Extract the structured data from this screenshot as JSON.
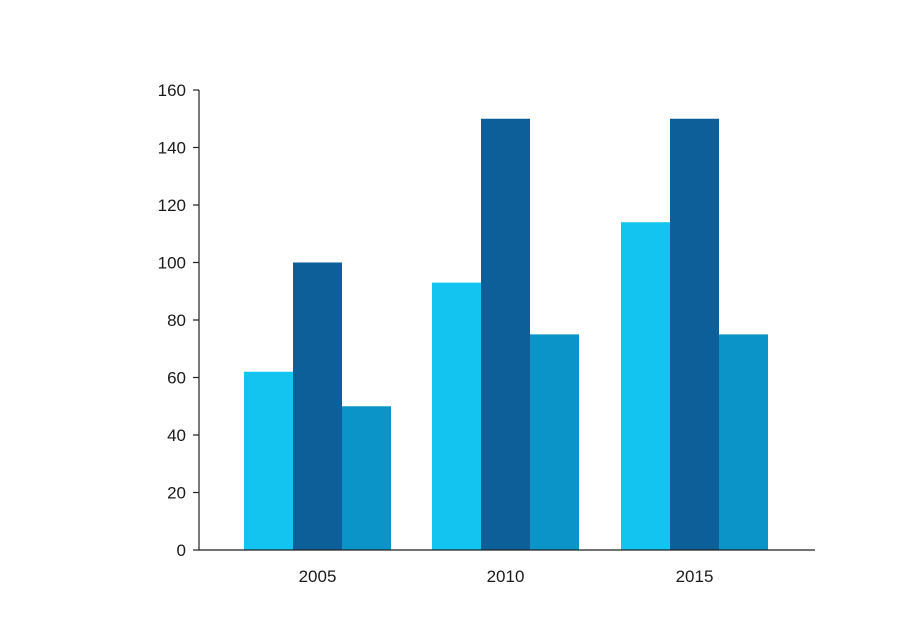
{
  "chart_data": {
    "type": "bar",
    "categories": [
      "2005",
      "2010",
      "2015"
    ],
    "series": [
      {
        "color": "#12c4ef",
        "values": [
          62,
          93,
          114
        ]
      },
      {
        "color": "#0d5f99",
        "values": [
          100,
          150,
          150
        ]
      },
      {
        "color": "#0b94c8",
        "values": [
          50,
          75,
          75
        ]
      }
    ],
    "yticks": [
      0,
      20,
      40,
      60,
      80,
      100,
      120,
      140,
      160
    ],
    "ylim": [
      0,
      160
    ],
    "grid": false,
    "legend": "none",
    "title": "",
    "xlabel": "",
    "ylabel": ""
  }
}
